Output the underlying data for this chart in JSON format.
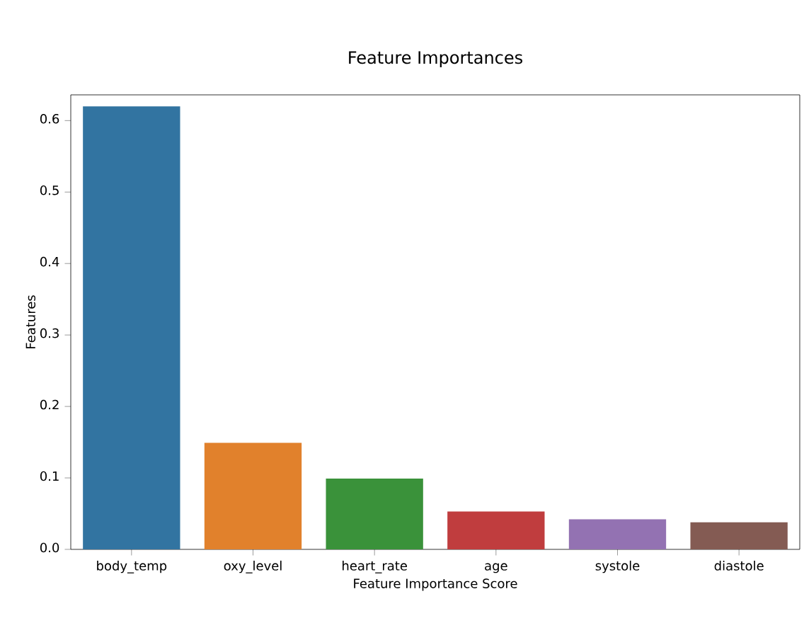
{
  "chart_data": {
    "type": "bar",
    "title": "Feature Importances",
    "xlabel": "Feature Importance Score",
    "ylabel": "Features",
    "categories": [
      "body_temp",
      "oxy_level",
      "heart_rate",
      "age",
      "systole",
      "diastole"
    ],
    "values": [
      0.62,
      0.149,
      0.099,
      0.053,
      0.042,
      0.038
    ],
    "colors": [
      "#3274a1",
      "#e1812c",
      "#3a923a",
      "#c03d3e",
      "#9372b2",
      "#845b53"
    ],
    "ylim": [
      0,
      0.636
    ],
    "yticks": [
      {
        "value": 0,
        "label": "0.0"
      },
      {
        "value": 0.1,
        "label": "0.1"
      },
      {
        "value": 0.2,
        "label": "0.2"
      },
      {
        "value": 0.3,
        "label": "0.3"
      },
      {
        "value": 0.4,
        "label": "0.4"
      },
      {
        "value": 0.5,
        "label": "0.5"
      },
      {
        "value": 0.6,
        "label": "0.6"
      }
    ]
  }
}
